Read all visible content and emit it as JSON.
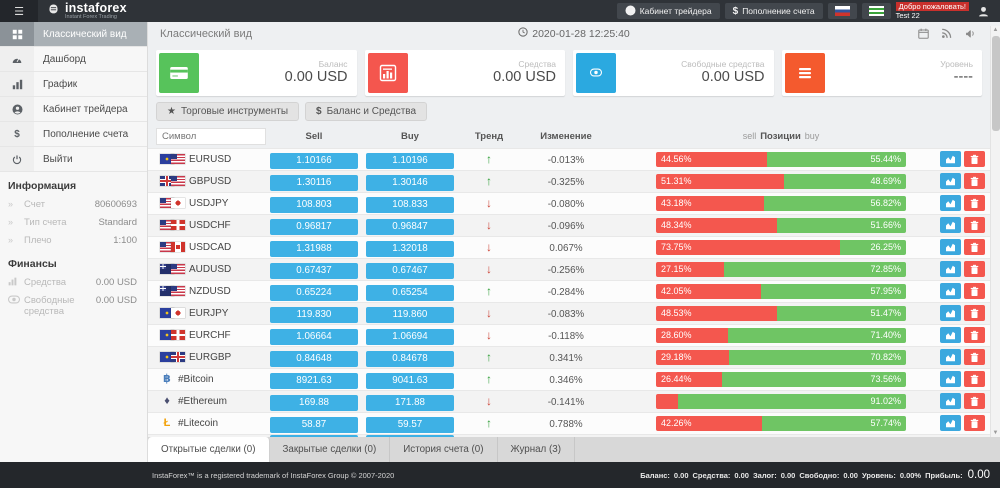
{
  "topbar": {
    "brand": "instaforex",
    "brand_sub": "Instant Forex Trading",
    "buttons": [
      {
        "label": "Кабинет трейдера",
        "icon": "user-icon"
      },
      {
        "label": "Пополнение счета",
        "icon": "dollar-icon"
      }
    ],
    "flags": [
      {
        "name": "flag-russia-icon",
        "cls": "fl-ru"
      },
      {
        "name": "flag-green-icon",
        "cls": "fl-green"
      }
    ],
    "welcome_line1": "Добро пожаловать!",
    "welcome_line2": "Test 22"
  },
  "sidebar": {
    "items": [
      {
        "label": "Классический вид",
        "icon": "grid-icon",
        "active": true
      },
      {
        "label": "Дашборд",
        "icon": "dashboard-icon"
      },
      {
        "label": "График",
        "icon": "chart-icon"
      },
      {
        "label": "Кабинет трейдера",
        "icon": "user-icon"
      },
      {
        "label": "Пополнение счета",
        "icon": "dollar-icon"
      },
      {
        "label": "Выйти",
        "icon": "power-icon"
      }
    ],
    "info_section": {
      "title": "Информация",
      "items": [
        {
          "label": "Счет",
          "value": "80600693",
          "icon": "chevron-icon"
        },
        {
          "label": "Тип счета",
          "value": "Standard",
          "icon": "chevron-icon"
        },
        {
          "label": "Плечо",
          "value": "1:100",
          "icon": "chevron-icon"
        }
      ]
    },
    "finance_section": {
      "title": "Финансы",
      "items": [
        {
          "label": "Средства",
          "value": "0.00 USD",
          "icon": "bars-icon"
        },
        {
          "label": "Свободные средства",
          "value": "0.00 USD",
          "icon": "coin-icon"
        }
      ]
    }
  },
  "main": {
    "page_title": "Классический вид",
    "datetime": "2020-01-28 12:25:40",
    "header_icons": [
      "calendar-icon",
      "rss-icon",
      "megaphone-icon"
    ],
    "cards": [
      {
        "label": "Баланс",
        "value": "0.00 USD",
        "icon": "credit-card-icon",
        "color": "#57c35b"
      },
      {
        "label": "Средства",
        "value": "0.00 USD",
        "icon": "bar-chart-icon",
        "color": "#f4564e"
      },
      {
        "label": "Свободные средства",
        "value": "0.00 USD",
        "icon": "coin-icon",
        "color": "#2ba9e0"
      },
      {
        "label": "Уровень",
        "value": "----",
        "icon": "menu-icon",
        "color": "#f45a2e"
      }
    ],
    "toolbar_buttons": [
      {
        "label": "Торговые инструменты",
        "icon": "star-icon"
      },
      {
        "label": "Баланс и Средства",
        "icon": "dollar-icon"
      }
    ],
    "table": {
      "filter_placeholder": "Символ",
      "headers": {
        "sell": "Sell",
        "buy": "Buy",
        "trend": "Тренд",
        "change": "Изменение",
        "positions_left": "sell",
        "positions_mid": "Позиции",
        "positions_right": "buy"
      },
      "action_icons": [
        "chart-icon",
        "trash-icon"
      ],
      "rows": [
        {
          "symbol": "EURUSD",
          "flags": [
            "eu",
            "us"
          ],
          "sell": "1.10166",
          "buy": "1.10196",
          "trend": "up",
          "change": "-0.013%",
          "sell_pct": 44.56,
          "buy_pct": 55.44,
          "sell_label": "44.56%",
          "buy_label": "55.44%"
        },
        {
          "symbol": "GBPUSD",
          "flags": [
            "gb",
            "us"
          ],
          "sell": "1.30116",
          "buy": "1.30146",
          "trend": "up",
          "change": "-0.325%",
          "sell_pct": 51.31,
          "buy_pct": 48.69,
          "sell_label": "51.31%",
          "buy_label": "48.69%"
        },
        {
          "symbol": "USDJPY",
          "flags": [
            "us",
            "jp"
          ],
          "sell": "108.803",
          "buy": "108.833",
          "trend": "down",
          "change": "-0.080%",
          "sell_pct": 43.18,
          "buy_pct": 56.82,
          "sell_label": "43.18%",
          "buy_label": "56.82%"
        },
        {
          "symbol": "USDCHF",
          "flags": [
            "us",
            "ch"
          ],
          "sell": "0.96817",
          "buy": "0.96847",
          "trend": "down",
          "change": "-0.096%",
          "sell_pct": 48.34,
          "buy_pct": 51.66,
          "sell_label": "48.34%",
          "buy_label": "51.66%"
        },
        {
          "symbol": "USDCAD",
          "flags": [
            "us",
            "ca"
          ],
          "sell": "1.31988",
          "buy": "1.32018",
          "trend": "down",
          "change": "0.067%",
          "sell_pct": 73.75,
          "buy_pct": 26.25,
          "sell_label": "73.75%",
          "buy_label": "26.25%"
        },
        {
          "symbol": "AUDUSD",
          "flags": [
            "au",
            "us"
          ],
          "sell": "0.67437",
          "buy": "0.67467",
          "trend": "down",
          "change": "-0.256%",
          "sell_pct": 27.15,
          "buy_pct": 72.85,
          "sell_label": "27.15%",
          "buy_label": "72.85%"
        },
        {
          "symbol": "NZDUSD",
          "flags": [
            "nz",
            "us"
          ],
          "sell": "0.65224",
          "buy": "0.65254",
          "trend": "up",
          "change": "-0.284%",
          "sell_pct": 42.05,
          "buy_pct": 57.95,
          "sell_label": "42.05%",
          "buy_label": "57.95%"
        },
        {
          "symbol": "EURJPY",
          "flags": [
            "eu",
            "jp"
          ],
          "sell": "119.830",
          "buy": "119.860",
          "trend": "down",
          "change": "-0.083%",
          "sell_pct": 48.53,
          "buy_pct": 51.47,
          "sell_label": "48.53%",
          "buy_label": "51.47%"
        },
        {
          "symbol": "EURCHF",
          "flags": [
            "eu",
            "ch"
          ],
          "sell": "1.06664",
          "buy": "1.06694",
          "trend": "down",
          "change": "-0.118%",
          "sell_pct": 28.6,
          "buy_pct": 71.4,
          "sell_label": "28.60%",
          "buy_label": "71.40%"
        },
        {
          "symbol": "EURGBP",
          "flags": [
            "eu",
            "gb"
          ],
          "sell": "0.84648",
          "buy": "0.84678",
          "trend": "up",
          "change": "0.341%",
          "sell_pct": 29.18,
          "buy_pct": 70.82,
          "sell_label": "29.18%",
          "buy_label": "70.82%"
        },
        {
          "symbol": "#Bitcoin",
          "crypto": "btc",
          "sell": "8921.63",
          "buy": "9041.63",
          "trend": "up",
          "change": "0.346%",
          "sell_pct": 26.44,
          "buy_pct": 73.56,
          "sell_label": "26.44%",
          "buy_label": "73.56%"
        },
        {
          "symbol": "#Ethereum",
          "crypto": "eth",
          "sell": "169.88",
          "buy": "171.88",
          "trend": "down",
          "change": "-0.141%",
          "sell_pct": 8.98,
          "buy_pct": 91.02,
          "sell_label": "",
          "buy_label": "91.02%"
        },
        {
          "symbol": "#Litecoin",
          "crypto": "ltc",
          "sell": "58.87",
          "buy": "59.57",
          "trend": "up",
          "change": "0.788%",
          "sell_pct": 42.26,
          "buy_pct": 57.74,
          "sell_label": "42.26%",
          "buy_label": "57.74%"
        },
        {
          "symbol": "",
          "flags": [],
          "sell": "",
          "buy": "",
          "trend": "up",
          "change": "",
          "sell_pct": 3,
          "buy_pct": 97,
          "sell_label": "",
          "buy_label": "",
          "partial": true
        }
      ]
    },
    "tabs": [
      {
        "label": "Открытые сделки (0)",
        "active": true
      },
      {
        "label": "Закрытые сделки (0)"
      },
      {
        "label": "История счета (0)"
      },
      {
        "label": "Журнал (3)"
      }
    ]
  },
  "footer": {
    "left": "InstaForex™ is a registered trademark of InstaForex Group © 2007-2020",
    "summary": [
      {
        "label": "Баланс:",
        "value": "0.00"
      },
      {
        "label": "Средства:",
        "value": "0.00"
      },
      {
        "label": "Залог:",
        "value": "0.00"
      },
      {
        "label": "Свободно:",
        "value": "0.00"
      },
      {
        "label": "Уровень:",
        "value": "0.00%"
      },
      {
        "label": "Прибыль:",
        "value": "0.00",
        "big": true
      }
    ]
  }
}
